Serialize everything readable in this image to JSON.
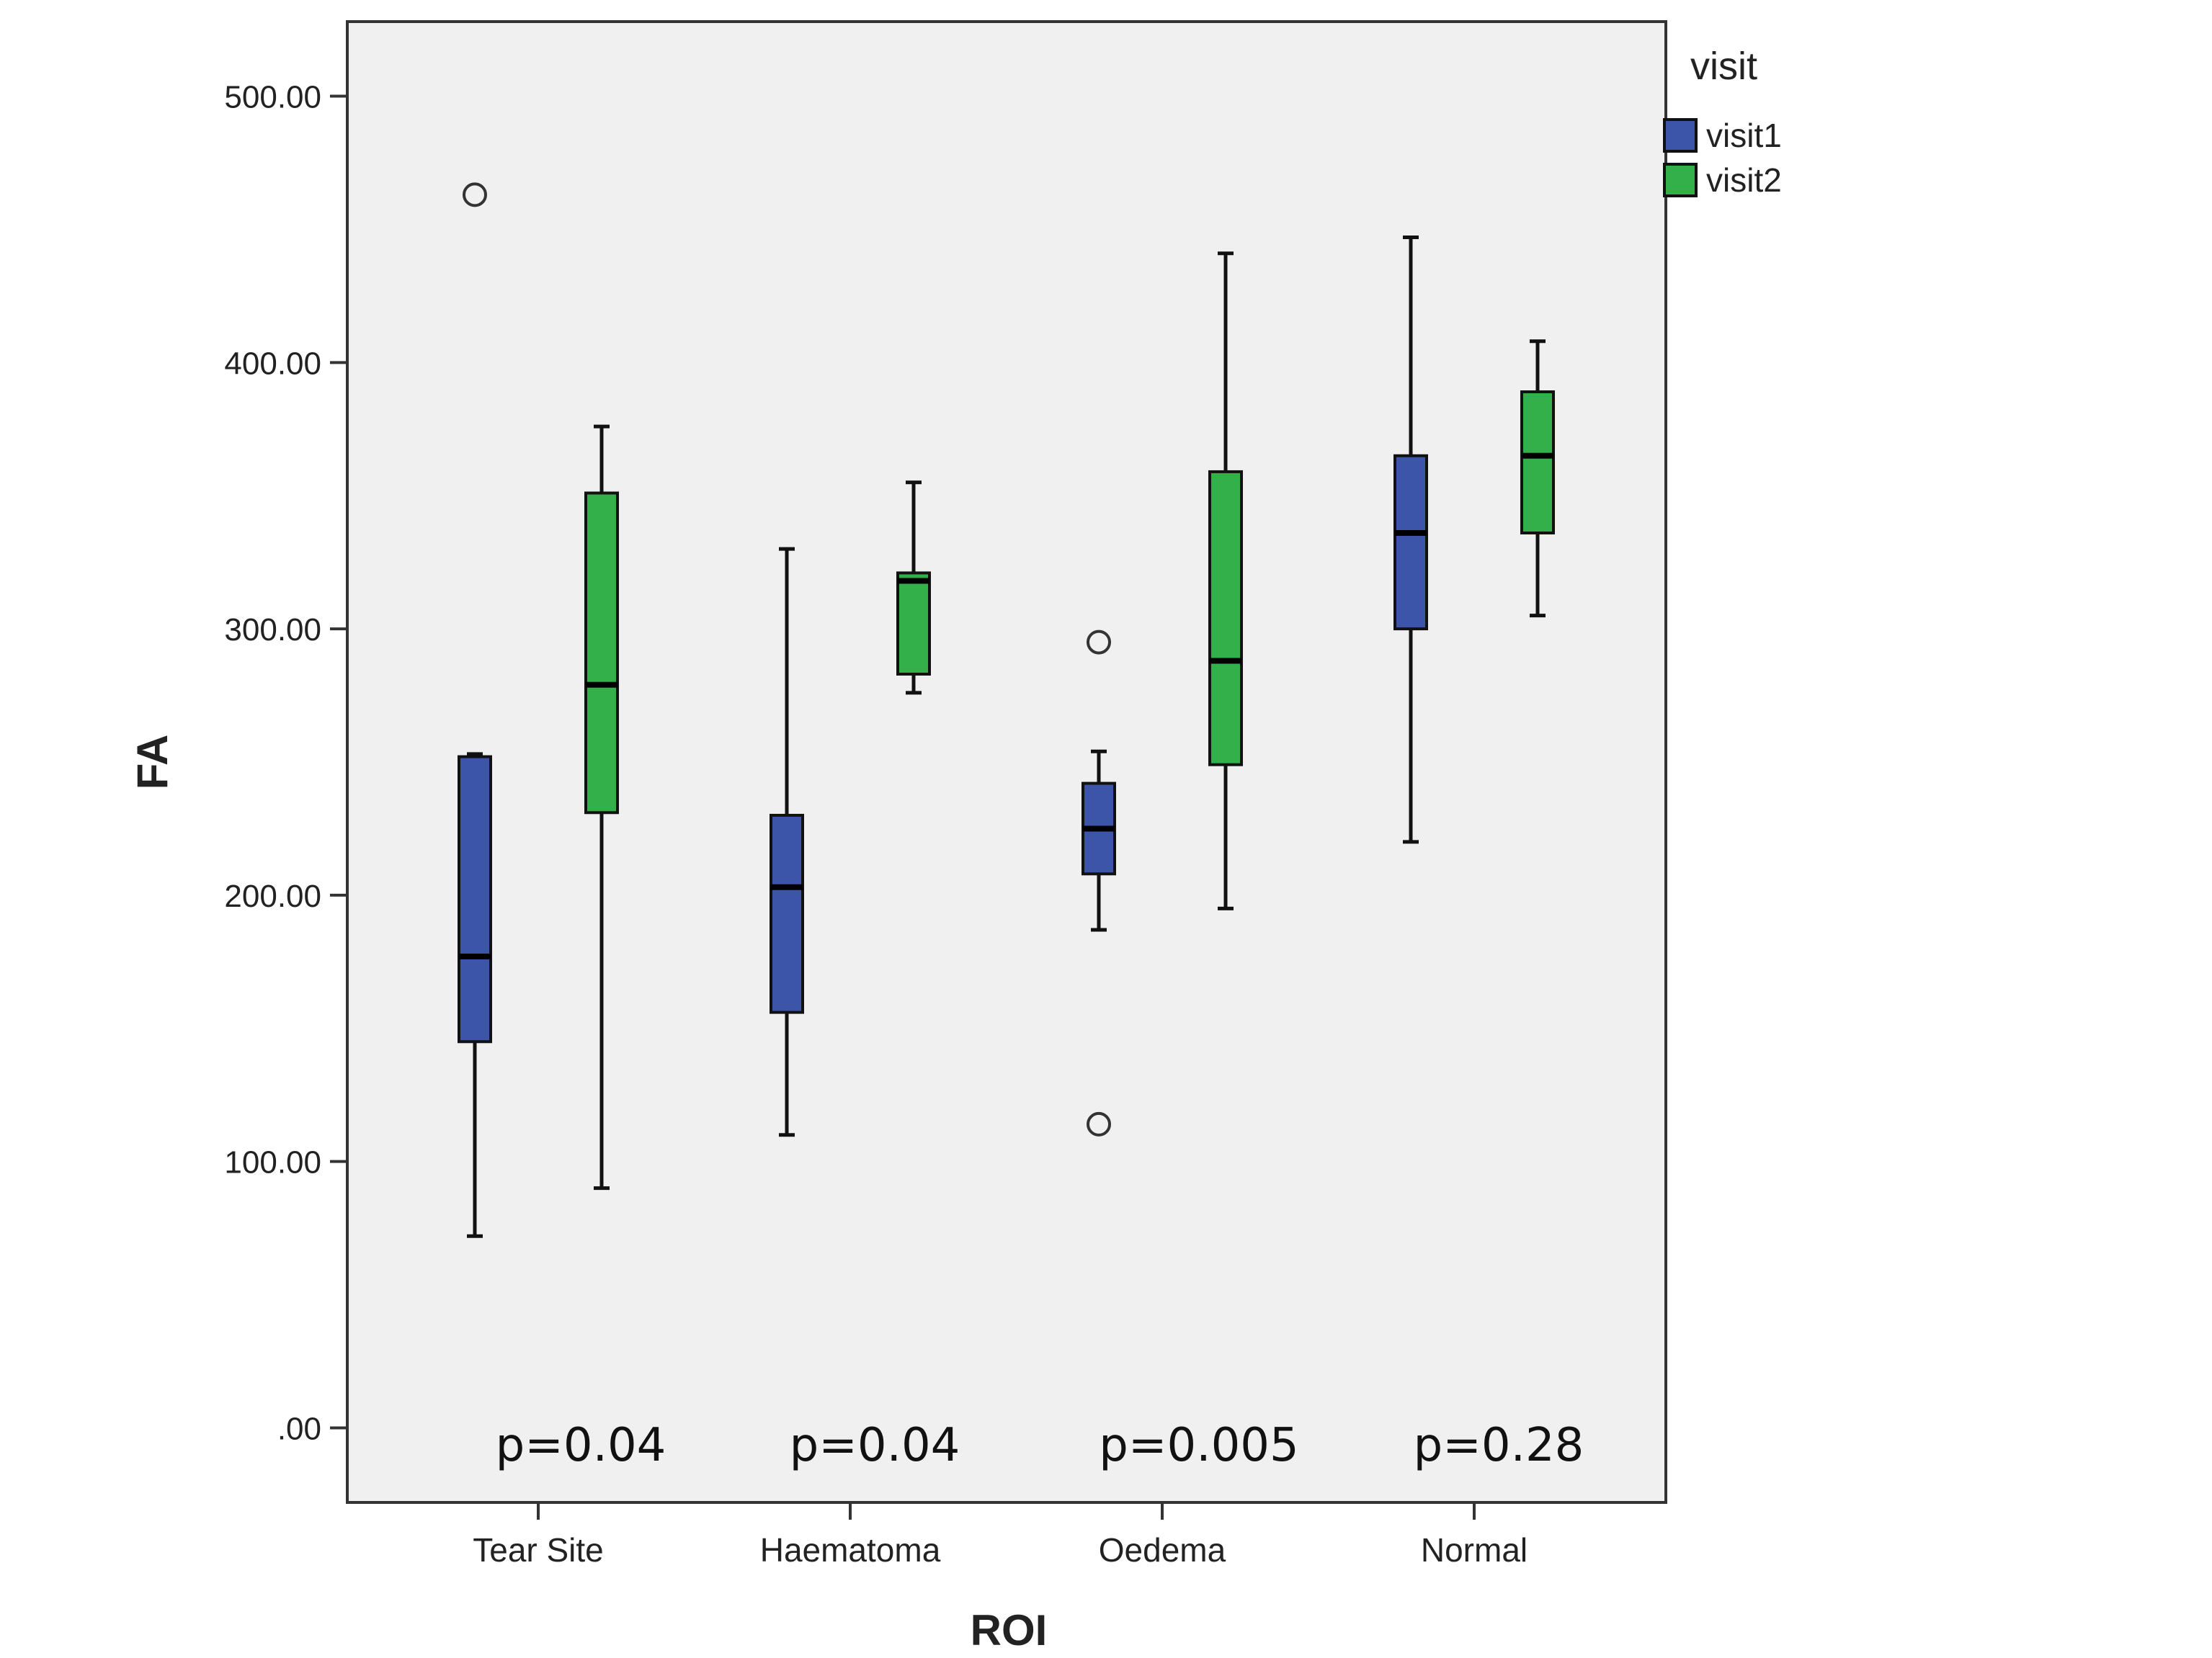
{
  "chart_data": {
    "type": "boxplot",
    "xlabel": "ROI",
    "ylabel": "FA",
    "ylim": [
      -28,
      528
    ],
    "yticks": [
      0,
      100,
      200,
      300,
      400,
      500
    ],
    "ytick_labels": [
      ".00",
      "100.00",
      "200.00",
      "300.00",
      "400.00",
      "500.00"
    ],
    "categories": [
      "Tear Site",
      "Haematoma",
      "Oedema",
      "Normal"
    ],
    "legend": {
      "title": "visit",
      "placement": "outside-top-right"
    },
    "series": [
      {
        "name": "visit1",
        "color": "#3c55a8",
        "boxes": [
          {
            "min": 72,
            "q1": 145,
            "median": 177,
            "q3": 252,
            "max": 253,
            "outliers": [
              463
            ]
          },
          {
            "min": 110,
            "q1": 156,
            "median": 203,
            "q3": 230,
            "max": 330,
            "outliers": []
          },
          {
            "min": 187,
            "q1": 208,
            "median": 225,
            "q3": 242,
            "max": 254,
            "outliers": [
              295,
              114
            ]
          },
          {
            "min": 220,
            "q1": 300,
            "median": 336,
            "q3": 365,
            "max": 447,
            "outliers": []
          }
        ]
      },
      {
        "name": "visit2",
        "color": "#33b04a",
        "boxes": [
          {
            "min": 90,
            "q1": 231,
            "median": 279,
            "q3": 351,
            "max": 376,
            "outliers": []
          },
          {
            "min": 276,
            "q1": 283,
            "median": 318,
            "q3": 321,
            "max": 355,
            "outliers": []
          },
          {
            "min": 195,
            "q1": 249,
            "median": 288,
            "q3": 359,
            "max": 441,
            "outliers": []
          },
          {
            "min": 305,
            "q1": 336,
            "median": 365,
            "q3": 389,
            "max": 408,
            "outliers": []
          }
        ]
      }
    ],
    "annotations": [
      "p=0.04",
      "p=0.04",
      "p=0.005",
      "p=0.28"
    ]
  }
}
